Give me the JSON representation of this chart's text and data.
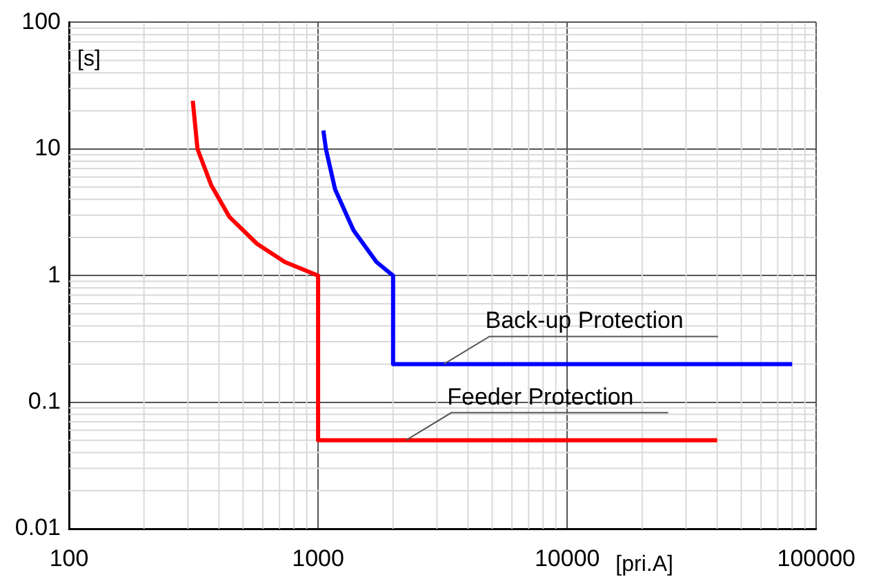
{
  "chart_data": {
    "type": "line",
    "xlabel": "[pri.A]",
    "ylabel": "[s]",
    "log": "xy",
    "grid": true,
    "legend": false,
    "marker": "none",
    "line_style": "solid",
    "xlim": [
      100,
      100000
    ],
    "xticks": [
      100,
      1000,
      10000,
      100000
    ],
    "ylim": [
      0.01,
      100
    ],
    "yticks": [
      0.01,
      0.1,
      1,
      10,
      100
    ],
    "series": [
      {
        "color": "#ff0000",
        "x": [
          314,
          328,
          372,
          441,
          569,
          735,
          1000,
          1000,
          40000
        ],
        "values": [
          24,
          10,
          5.2,
          2.9,
          1.78,
          1.28,
          1,
          0.05,
          0.05
        ]
      },
      {
        "color": "#0000ff",
        "x": [
          1050,
          1075,
          1170,
          1387,
          1715,
          2000,
          2000,
          80000
        ],
        "values": [
          14,
          10,
          4.8,
          2.28,
          1.28,
          1,
          0.2,
          0.2
        ]
      }
    ],
    "annotations": [
      {
        "text": "Back-up Protection",
        "x": 3200,
        "y": 0.2
      },
      {
        "text": "Feeder Protection",
        "x": 2250,
        "y": 0.05
      }
    ]
  }
}
